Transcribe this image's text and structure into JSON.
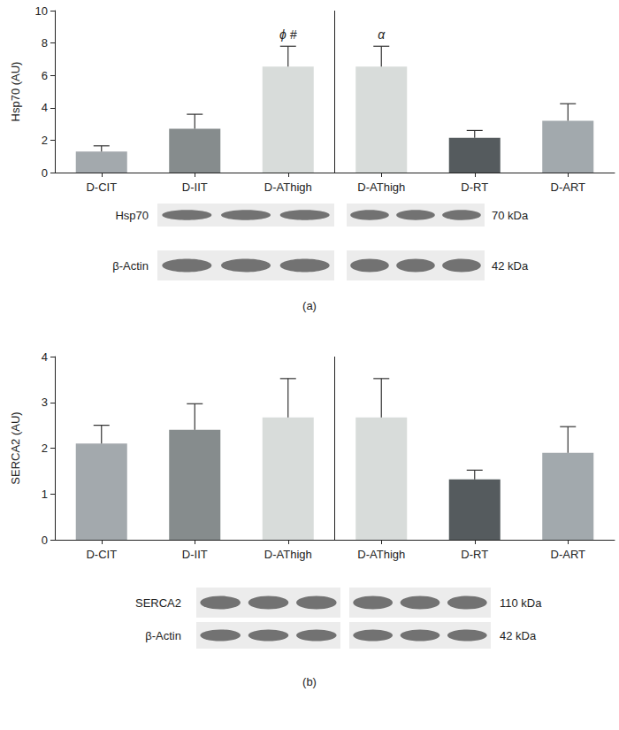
{
  "chart_data": [
    {
      "type": "bar",
      "panel": "(a)",
      "ylabel": "Hsp70 (AU)",
      "categories": [
        "D-CIT",
        "D-IIT",
        "D-AThigh",
        "D-AThigh",
        "D-RT",
        "D-ART"
      ],
      "values": [
        1.3,
        2.7,
        6.55,
        6.55,
        2.15,
        3.2
      ],
      "errors": [
        0.35,
        0.9,
        1.25,
        1.25,
        0.45,
        1.05
      ],
      "colors": [
        "#a3a9ad",
        "#868c8d",
        "#d8dcda",
        "#d8dcda",
        "#555b5e",
        "#a2a9ad"
      ],
      "annotations": [
        null,
        null,
        "ϕ #",
        "α",
        null,
        null
      ],
      "ylim": [
        0,
        10
      ],
      "yticks": [
        0,
        2,
        4,
        6,
        8,
        10
      ],
      "grid": false,
      "blots": [
        {
          "label": "Hsp70",
          "size": "70 kDa"
        },
        {
          "label": "β-Actin",
          "size": "42 kDa"
        }
      ]
    },
    {
      "type": "bar",
      "panel": "(b)",
      "ylabel": "SERCA2 (AU)",
      "categories": [
        "D-CIT",
        "D-IIT",
        "D-AThigh",
        "D-AThigh",
        "D-RT",
        "D-ART"
      ],
      "values": [
        2.1,
        2.4,
        2.67,
        2.67,
        1.32,
        1.9
      ],
      "errors": [
        0.4,
        0.57,
        0.85,
        0.85,
        0.2,
        0.57
      ],
      "colors": [
        "#a3a9ad",
        "#868c8d",
        "#d8dcda",
        "#d8dcda",
        "#555b5e",
        "#a2a9ad"
      ],
      "ylim": [
        0,
        4
      ],
      "yticks": [
        0,
        1,
        2,
        3,
        4
      ],
      "grid": false,
      "blots": [
        {
          "label": "SERCA2",
          "size": "110 kDa"
        },
        {
          "label": "β-Actin",
          "size": "42 kDa"
        }
      ]
    }
  ]
}
